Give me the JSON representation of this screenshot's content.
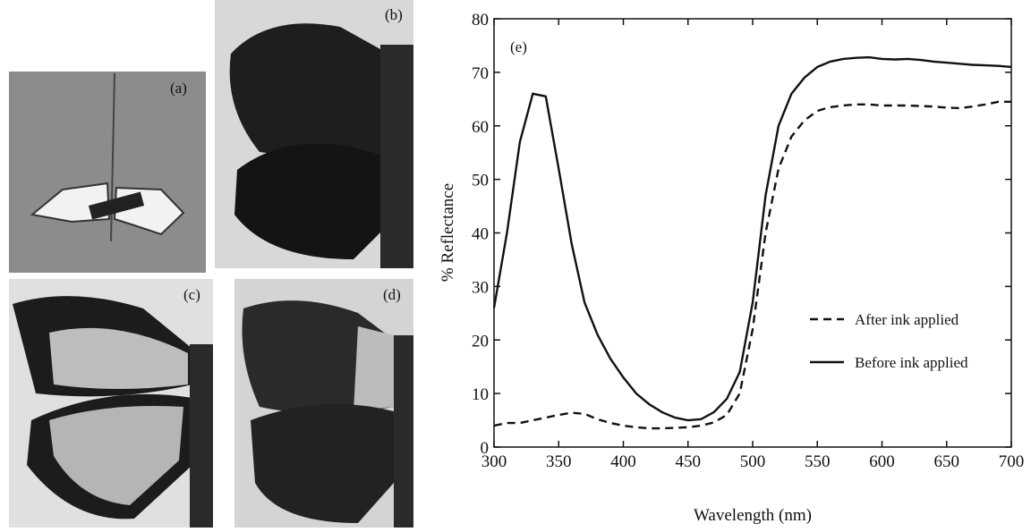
{
  "photo_labels": [
    "(a)",
    "(b)",
    "(c)",
    "(d)"
  ],
  "chart_data": {
    "type": "line",
    "panel_label": "(e)",
    "x_label": "Wavelength (nm)",
    "y_label": "% Reflectance",
    "x": [
      300,
      310,
      320,
      330,
      340,
      350,
      360,
      370,
      380,
      390,
      400,
      410,
      420,
      430,
      440,
      450,
      460,
      470,
      480,
      490,
      500,
      510,
      520,
      530,
      540,
      550,
      560,
      570,
      580,
      590,
      600,
      610,
      620,
      630,
      640,
      650,
      660,
      670,
      680,
      690,
      700
    ],
    "series": [
      {
        "name": "After ink applied",
        "color": "#111111",
        "style": "dashed",
        "values": [
          4,
          4.5,
          4.5,
          5,
          5.5,
          6,
          6.4,
          6.2,
          5.2,
          4.5,
          4,
          3.7,
          3.5,
          3.5,
          3.6,
          3.7,
          4,
          4.6,
          6,
          10,
          22,
          40,
          52,
          58,
          61,
          62.8,
          63.5,
          63.8,
          64,
          64,
          63.8,
          63.8,
          63.8,
          63.7,
          63.6,
          63.4,
          63.3,
          63.6,
          64,
          64.5,
          64.5
        ]
      },
      {
        "name": "Before ink applied",
        "color": "#111111",
        "style": "solid",
        "values": [
          26,
          40,
          57,
          66,
          65.5,
          52,
          38,
          27,
          21,
          16.5,
          13,
          10,
          8,
          6.5,
          5.5,
          5,
          5.2,
          6.5,
          9,
          14,
          27,
          47,
          60,
          66,
          69,
          71,
          72,
          72.5,
          72.7,
          72.8,
          72.5,
          72.4,
          72.5,
          72.3,
          72,
          71.8,
          71.6,
          71.4,
          71.3,
          71.2,
          71
        ]
      }
    ],
    "xlim": [
      300,
      700
    ],
    "ylim": [
      0,
      80
    ],
    "xticks": [
      300,
      350,
      400,
      450,
      500,
      550,
      600,
      650,
      700
    ],
    "yticks": [
      0,
      10,
      20,
      30,
      40,
      50,
      60,
      70,
      80
    ],
    "legend_position": "center-right"
  }
}
